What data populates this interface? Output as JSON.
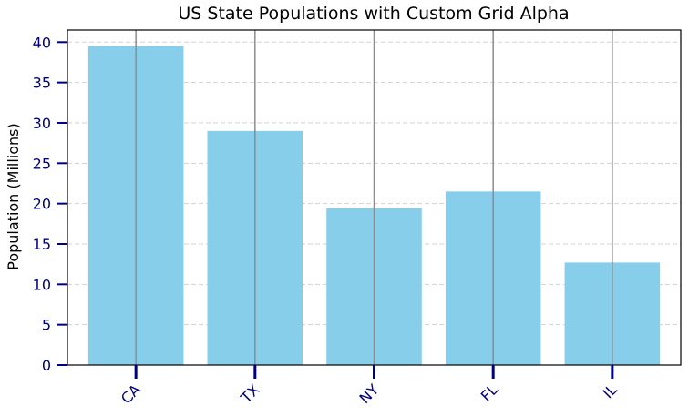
{
  "chart_data": {
    "type": "bar",
    "title": "US State Populations with Custom Grid Alpha",
    "xlabel": "",
    "ylabel": "Population (Millions)",
    "categories": [
      "CA",
      "TX",
      "NY",
      "FL",
      "IL"
    ],
    "values": [
      39.5,
      29.0,
      19.4,
      21.5,
      12.7
    ],
    "ylim": [
      0,
      41.5
    ],
    "yticks": [
      0,
      5,
      10,
      15,
      20,
      25,
      30,
      35,
      40
    ],
    "grid": {
      "y": "dashed light gray",
      "x": "solid gray through bar centers"
    },
    "colors": {
      "bar": "#87ceeb",
      "tick": "#000080",
      "grid_x": "#8c8c8c",
      "grid_y": "#d3d3d3",
      "axes": "#000000"
    },
    "xtick_rotation": 45
  }
}
